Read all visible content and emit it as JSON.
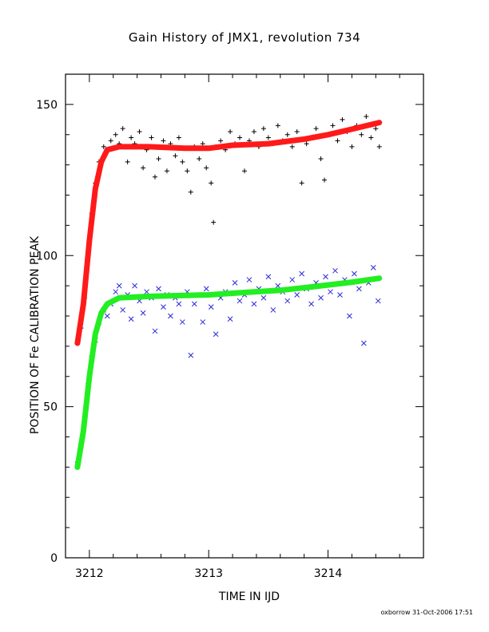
{
  "chart_data": {
    "type": "scatter",
    "title": "Gain History of JMX1, revolution 734",
    "xlabel": "TIME IN IJD",
    "ylabel": "POSITION OF Fe CALIBRATION PEAK",
    "footer": "oxborrow 31-Oct-2006 17:51",
    "xlim": [
      3211.8,
      3214.8
    ],
    "ylim": [
      0,
      160
    ],
    "x_ticks": [
      3212,
      3213,
      3214
    ],
    "y_ticks": [
      0,
      50,
      100,
      150
    ],
    "grid": false,
    "series": [
      {
        "marker": "+",
        "color": "#000000",
        "points": [
          [
            3211.9,
            71
          ],
          [
            3211.93,
            76
          ],
          [
            3211.96,
            86
          ],
          [
            3211.99,
            100
          ],
          [
            3212.02,
            114
          ],
          [
            3212.05,
            124
          ],
          [
            3212.08,
            131
          ],
          [
            3212.12,
            136
          ],
          [
            3212.15,
            135
          ],
          [
            3212.18,
            138
          ],
          [
            3212.22,
            140
          ],
          [
            3212.25,
            137
          ],
          [
            3212.28,
            142
          ],
          [
            3212.32,
            131
          ],
          [
            3212.35,
            139
          ],
          [
            3212.38,
            137
          ],
          [
            3212.42,
            141
          ],
          [
            3212.45,
            129
          ],
          [
            3212.48,
            135
          ],
          [
            3212.52,
            139
          ],
          [
            3212.55,
            126
          ],
          [
            3212.58,
            132
          ],
          [
            3212.62,
            138
          ],
          [
            3212.65,
            128
          ],
          [
            3212.68,
            137
          ],
          [
            3212.72,
            133
          ],
          [
            3212.75,
            139
          ],
          [
            3212.78,
            131
          ],
          [
            3212.82,
            128
          ],
          [
            3212.85,
            121
          ],
          [
            3212.88,
            136
          ],
          [
            3212.92,
            132
          ],
          [
            3212.95,
            137
          ],
          [
            3212.98,
            129
          ],
          [
            3213.02,
            124
          ],
          [
            3213.04,
            111
          ],
          [
            3213.06,
            136
          ],
          [
            3213.1,
            138
          ],
          [
            3213.14,
            135
          ],
          [
            3213.18,
            141
          ],
          [
            3213.22,
            137
          ],
          [
            3213.26,
            139
          ],
          [
            3213.3,
            128
          ],
          [
            3213.34,
            138
          ],
          [
            3213.38,
            141
          ],
          [
            3213.42,
            136
          ],
          [
            3213.46,
            142
          ],
          [
            3213.5,
            139
          ],
          [
            3213.54,
            137
          ],
          [
            3213.58,
            143
          ],
          [
            3213.62,
            138
          ],
          [
            3213.66,
            140
          ],
          [
            3213.7,
            136
          ],
          [
            3213.74,
            141
          ],
          [
            3213.78,
            124
          ],
          [
            3213.82,
            137
          ],
          [
            3213.86,
            139
          ],
          [
            3213.9,
            142
          ],
          [
            3213.94,
            132
          ],
          [
            3213.97,
            125
          ],
          [
            3214.0,
            140
          ],
          [
            3214.04,
            143
          ],
          [
            3214.08,
            138
          ],
          [
            3214.12,
            145
          ],
          [
            3214.16,
            141
          ],
          [
            3214.2,
            136
          ],
          [
            3214.24,
            143
          ],
          [
            3214.28,
            140
          ],
          [
            3214.32,
            146
          ],
          [
            3214.36,
            139
          ],
          [
            3214.4,
            142
          ],
          [
            3214.43,
            136
          ]
        ]
      },
      {
        "marker": "x",
        "color": "#2a2ad8",
        "points": [
          [
            3211.9,
            31
          ],
          [
            3211.93,
            37
          ],
          [
            3211.96,
            46
          ],
          [
            3211.99,
            57
          ],
          [
            3212.02,
            66
          ],
          [
            3212.05,
            72
          ],
          [
            3212.08,
            78
          ],
          [
            3212.12,
            82
          ],
          [
            3212.15,
            80
          ],
          [
            3212.18,
            84
          ],
          [
            3212.22,
            88
          ],
          [
            3212.25,
            90
          ],
          [
            3212.28,
            82
          ],
          [
            3212.32,
            87
          ],
          [
            3212.35,
            79
          ],
          [
            3212.38,
            90
          ],
          [
            3212.42,
            85
          ],
          [
            3212.45,
            81
          ],
          [
            3212.48,
            88
          ],
          [
            3212.52,
            86
          ],
          [
            3212.55,
            75
          ],
          [
            3212.58,
            89
          ],
          [
            3212.62,
            83
          ],
          [
            3212.65,
            87
          ],
          [
            3212.68,
            80
          ],
          [
            3212.72,
            86
          ],
          [
            3212.75,
            84
          ],
          [
            3212.78,
            78
          ],
          [
            3212.82,
            88
          ],
          [
            3212.85,
            67
          ],
          [
            3212.88,
            84
          ],
          [
            3212.92,
            87
          ],
          [
            3212.95,
            78
          ],
          [
            3212.98,
            89
          ],
          [
            3213.02,
            83
          ],
          [
            3213.06,
            74
          ],
          [
            3213.1,
            86
          ],
          [
            3213.14,
            88
          ],
          [
            3213.18,
            79
          ],
          [
            3213.22,
            91
          ],
          [
            3213.26,
            85
          ],
          [
            3213.3,
            87
          ],
          [
            3213.34,
            92
          ],
          [
            3213.38,
            84
          ],
          [
            3213.42,
            89
          ],
          [
            3213.46,
            86
          ],
          [
            3213.5,
            93
          ],
          [
            3213.54,
            82
          ],
          [
            3213.58,
            90
          ],
          [
            3213.62,
            88
          ],
          [
            3213.66,
            85
          ],
          [
            3213.7,
            92
          ],
          [
            3213.74,
            87
          ],
          [
            3213.78,
            94
          ],
          [
            3213.82,
            89
          ],
          [
            3213.86,
            84
          ],
          [
            3213.9,
            91
          ],
          [
            3213.94,
            86
          ],
          [
            3213.98,
            93
          ],
          [
            3214.02,
            88
          ],
          [
            3214.06,
            95
          ],
          [
            3214.1,
            87
          ],
          [
            3214.14,
            92
          ],
          [
            3214.18,
            80
          ],
          [
            3214.22,
            94
          ],
          [
            3214.26,
            89
          ],
          [
            3214.3,
            71
          ],
          [
            3214.34,
            91
          ],
          [
            3214.38,
            96
          ],
          [
            3214.42,
            85
          ]
        ]
      },
      {
        "marker": "line",
        "color": "#ff1a1a",
        "points": [
          [
            3211.9,
            71
          ],
          [
            3211.95,
            84
          ],
          [
            3212.0,
            105
          ],
          [
            3212.05,
            122
          ],
          [
            3212.1,
            131
          ],
          [
            3212.15,
            135
          ],
          [
            3212.25,
            136
          ],
          [
            3212.5,
            136
          ],
          [
            3212.8,
            135.5
          ],
          [
            3213.0,
            135.5
          ],
          [
            3213.2,
            136.5
          ],
          [
            3213.5,
            137
          ],
          [
            3213.8,
            138.5
          ],
          [
            3214.0,
            140
          ],
          [
            3214.2,
            141.8
          ],
          [
            3214.43,
            144
          ]
        ]
      },
      {
        "marker": "line",
        "color": "#22ee22",
        "points": [
          [
            3211.9,
            30
          ],
          [
            3211.95,
            42
          ],
          [
            3212.0,
            60
          ],
          [
            3212.05,
            74
          ],
          [
            3212.1,
            81
          ],
          [
            3212.15,
            84
          ],
          [
            3212.25,
            86
          ],
          [
            3212.5,
            86.5
          ],
          [
            3212.8,
            86.8
          ],
          [
            3213.0,
            87
          ],
          [
            3213.3,
            87.8
          ],
          [
            3213.6,
            88.5
          ],
          [
            3213.9,
            89.8
          ],
          [
            3214.2,
            91.2
          ],
          [
            3214.43,
            92.5
          ]
        ]
      }
    ]
  }
}
